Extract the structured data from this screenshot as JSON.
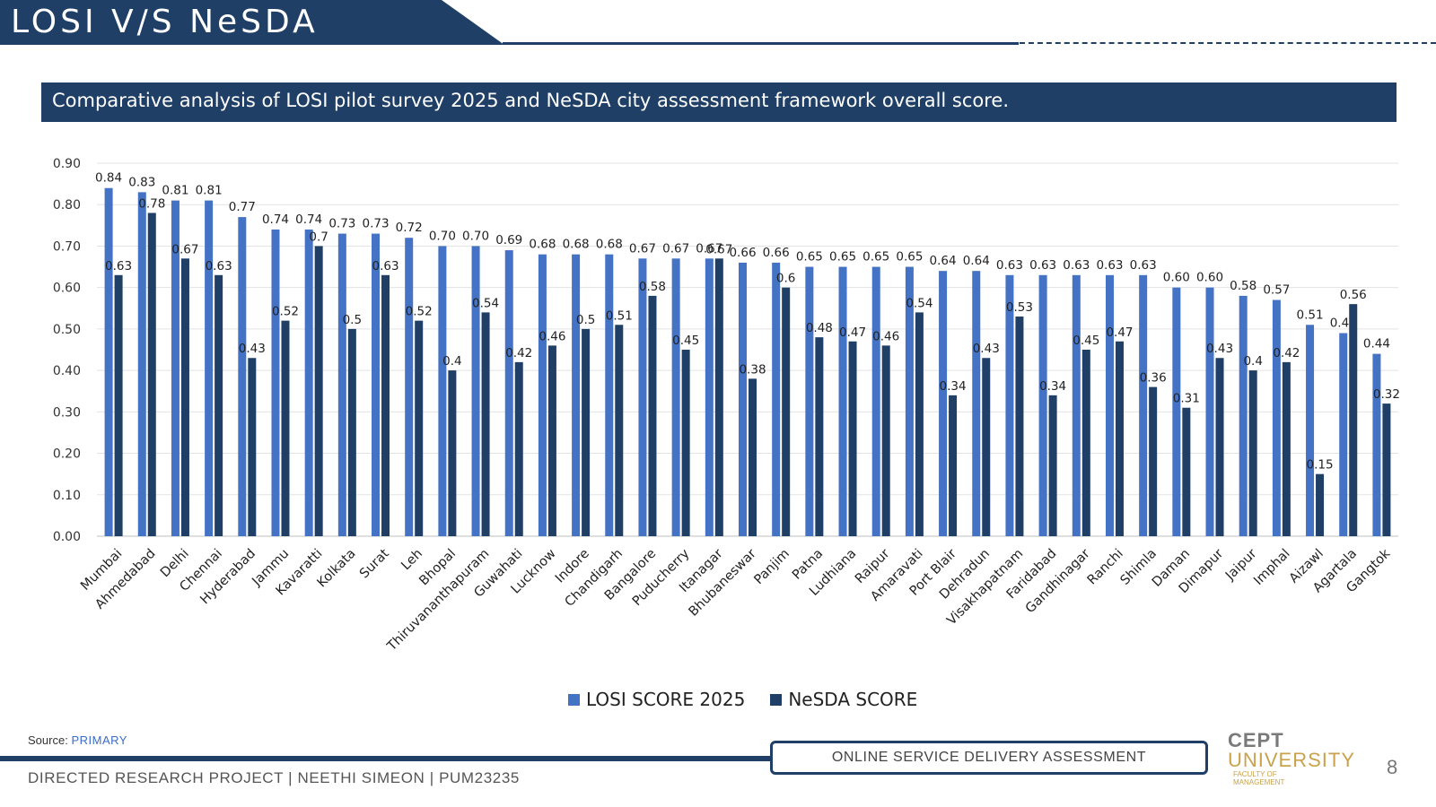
{
  "header": {
    "title": "LOSI V/S NeSDA"
  },
  "subtitle": "Comparative analysis of LOSI pilot survey 2025 and NeSDA city assessment framework overall score.",
  "chart_data": {
    "type": "bar",
    "title": "",
    "xlabel": "",
    "ylabel": "",
    "ylim": [
      0,
      0.9
    ],
    "yticks": [
      "0.00",
      "0.10",
      "0.20",
      "0.30",
      "0.40",
      "0.50",
      "0.60",
      "0.70",
      "0.80",
      "0.90"
    ],
    "grid": true,
    "legend_position": "bottom",
    "categories": [
      "Mumbai",
      "Ahmedabad",
      "Delhi",
      "Chennai",
      "Hyderabad",
      "Jammu",
      "Kavaratti",
      "Kolkata",
      "Surat",
      "Leh",
      "Bhopal",
      "Thiruvananthapuram",
      "Guwahati",
      "Lucknow",
      "Indore",
      "Chandigarh",
      "Bangalore",
      "Puducherry",
      "Itanagar",
      "Bhubaneswar",
      "Panjim",
      "Patna",
      "Ludhiana",
      "Raipur",
      "Amaravati",
      "Port Blair",
      "Dehradun",
      "Visakhapatnam",
      "Faridabad",
      "Gandhinagar",
      "Ranchi",
      "Shimla",
      "Daman",
      "Dimapur",
      "Jaipur",
      "Imphal",
      "Aizawl",
      "Agartala",
      "Gangtok"
    ],
    "series": [
      {
        "name": "LOSI SCORE 2025",
        "color": "#4472c4",
        "values": [
          0.84,
          0.83,
          0.81,
          0.81,
          0.77,
          0.74,
          0.74,
          0.73,
          0.73,
          0.72,
          0.7,
          0.7,
          0.69,
          0.68,
          0.68,
          0.68,
          0.67,
          0.67,
          0.67,
          0.66,
          0.66,
          0.65,
          0.65,
          0.65,
          0.65,
          0.64,
          0.64,
          0.63,
          0.63,
          0.63,
          0.63,
          0.63,
          0.6,
          0.6,
          0.58,
          0.57,
          0.51,
          0.49,
          0.44
        ],
        "labels": [
          "0.84",
          "0.83",
          "0.81",
          "0.81",
          "0.77",
          "0.74",
          "0.74",
          "0.73",
          "0.73",
          "0.72",
          "0.70",
          "0.70",
          "0.69",
          "0.68",
          "0.68",
          "0.68",
          "0.67",
          "0.67",
          "0.67",
          "0.66",
          "0.66",
          "0.65",
          "0.65",
          "0.65",
          "0.65",
          "0.64",
          "0.64",
          "0.63",
          "0.63",
          "0.63",
          "0.63",
          "0.63",
          "0.60",
          "0.60",
          "0.58",
          "0.57",
          "0.51",
          "0.49",
          "0.44"
        ]
      },
      {
        "name": "NeSDA SCORE",
        "color": "#1f3f66",
        "values": [
          0.63,
          0.78,
          0.67,
          0.63,
          0.43,
          0.52,
          0.7,
          0.5,
          0.63,
          0.52,
          0.4,
          0.54,
          0.42,
          0.46,
          0.5,
          0.51,
          0.58,
          0.45,
          0.67,
          0.38,
          0.6,
          0.48,
          0.47,
          0.46,
          0.54,
          0.34,
          0.43,
          0.53,
          0.34,
          0.45,
          0.47,
          0.36,
          0.31,
          0.43,
          0.4,
          0.42,
          0.15,
          0.56,
          0.32
        ],
        "labels": [
          "0.63",
          "0.78",
          "0.67",
          "0.63",
          "0.43",
          "0.52",
          "0.7",
          "0.5",
          "0.63",
          "0.52",
          "0.4",
          "0.54",
          "0.42",
          "0.46",
          "0.5",
          "0.51",
          "0.58",
          "0.45",
          "0.67",
          "0.38",
          "0.6",
          "0.48",
          "0.47",
          "0.46",
          "0.54",
          "0.34",
          "0.43",
          "0.53",
          "0.34",
          "0.45",
          "0.47",
          "0.36",
          "0.31",
          "0.43",
          "0.4",
          "0.42",
          "0.15",
          "0.56",
          "0.32"
        ]
      }
    ]
  },
  "colors": {
    "brand_navy": "#1f3f66",
    "losi_blue": "#4472c4",
    "gold": "#c9a24b"
  },
  "source": {
    "label": "Source:",
    "value": "PRIMARY"
  },
  "footer": {
    "project": "DIRECTED RESEARCH PROJECT | NEETHI SIMEON | PUM23235",
    "badge": "ONLINE SERVICE DELIVERY ASSESSMENT",
    "logo_line1": "CEPT",
    "logo_line2": "UNIVERSITY",
    "logo_line3": "FACULTY OF MANAGEMENT",
    "page_number": "8"
  }
}
